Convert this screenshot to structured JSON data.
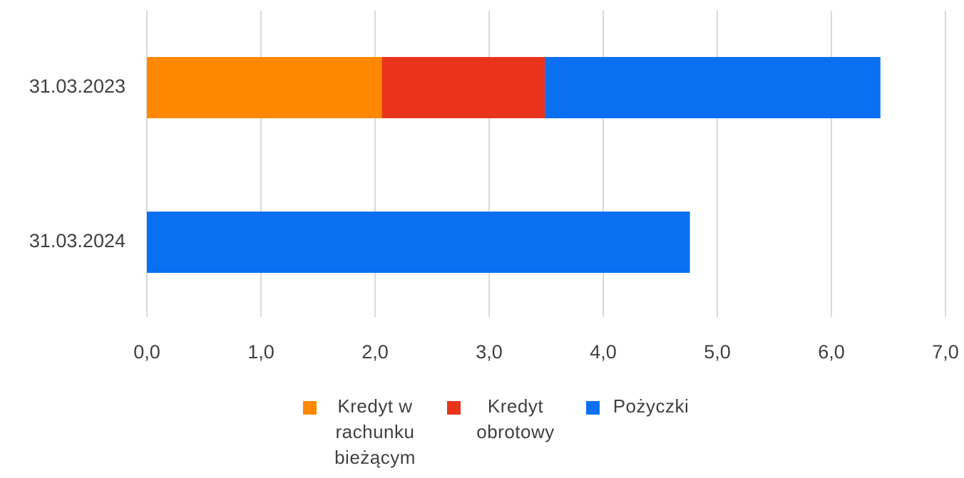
{
  "chart_data": {
    "type": "bar",
    "orientation": "horizontal",
    "stacked": true,
    "categories": [
      "31.03.2023",
      "31.03.2024"
    ],
    "series": [
      {
        "name": "Kredyt w rachunku bieżącym",
        "color": "#ff8800",
        "values": [
          2.06,
          0
        ]
      },
      {
        "name": "Kredyt obrotowy",
        "color": "#e8341c",
        "values": [
          1.43,
          0
        ]
      },
      {
        "name": "Pożyczki",
        "color": "#0b6ff2",
        "values": [
          2.94,
          4.76
        ]
      }
    ],
    "xlim": [
      0,
      7
    ],
    "xticks": [
      {
        "value": 0,
        "label": "0,0"
      },
      {
        "value": 1,
        "label": "1,0"
      },
      {
        "value": 2,
        "label": "2,0"
      },
      {
        "value": 3,
        "label": "3,0"
      },
      {
        "value": 4,
        "label": "4,0"
      },
      {
        "value": 5,
        "label": "5,0"
      },
      {
        "value": 6,
        "label": "6,0"
      },
      {
        "value": 7,
        "label": "7,0"
      }
    ],
    "grid": true,
    "legend": "bottom"
  }
}
